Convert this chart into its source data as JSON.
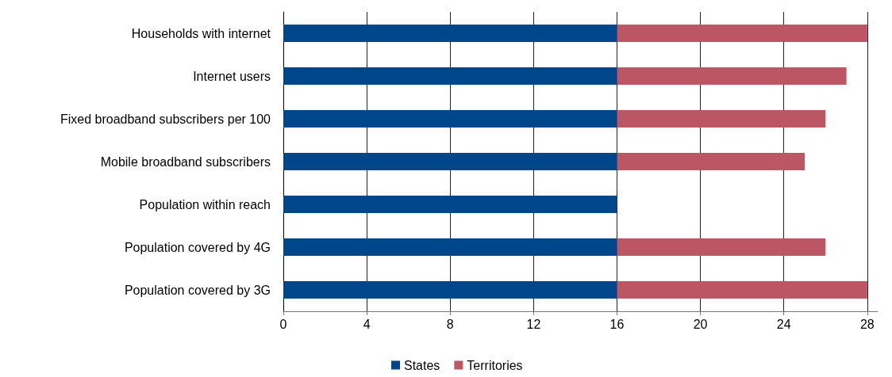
{
  "chart_data": {
    "type": "bar",
    "orientation": "horizontal",
    "stacked": true,
    "categories": [
      "Households with internet",
      "Internet users",
      "Fixed broadband subscribers per 100",
      "Mobile broadband subscribers",
      "Population within reach",
      "Population covered by 4G",
      "Population covered by 3G"
    ],
    "series": [
      {
        "name": "States",
        "color": "#00468b",
        "values": [
          16,
          16,
          16,
          16,
          16,
          16,
          16
        ]
      },
      {
        "name": "Territories",
        "color": "#bc5564",
        "values": [
          12,
          11,
          10,
          9,
          null,
          10,
          12
        ]
      }
    ],
    "xlim": [
      0,
      28.5
    ],
    "xticks": [
      0,
      4,
      8,
      12,
      16,
      20,
      24,
      28
    ],
    "grid": "x",
    "legend": "bottom"
  }
}
